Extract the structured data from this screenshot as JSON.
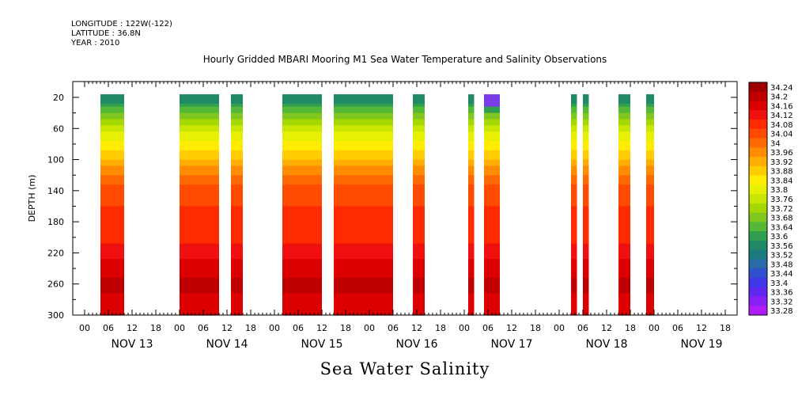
{
  "header": {
    "longitude": "LONGITUDE : 122W(-122)",
    "latitude": "LATITUDE : 36.8N",
    "year": "YEAR : 2010"
  },
  "chart_data": {
    "type": "heatmap",
    "title": "Hourly Gridded MBARI Mooring M1 Sea Water Temperature and Salinity Observations",
    "xlabel": "Sea Water Salinity",
    "ylabel": "DEPTH (m)",
    "y_range": [
      300,
      0
    ],
    "y_ticks": [
      20,
      60,
      100,
      140,
      180,
      220,
      260,
      300
    ],
    "x_hour_range": [
      -3,
      165
    ],
    "x_day_labels": [
      {
        "day": "NOV 13",
        "hour": 12
      },
      {
        "day": "NOV 14",
        "hour": 36
      },
      {
        "day": "NOV 15",
        "hour": 60
      },
      {
        "day": "NOV 16",
        "hour": 84
      },
      {
        "day": "NOV 17",
        "hour": 108
      },
      {
        "day": "NOV 18",
        "hour": 132
      },
      {
        "day": "NOV 19",
        "hour": 156
      }
    ],
    "x_hour_labels": [
      "00",
      "06",
      "12",
      "18"
    ],
    "colorbar": {
      "levels": [
        "34.24",
        "34.2",
        "34.16",
        "34.12",
        "34.08",
        "34.04",
        "34",
        "33.96",
        "33.92",
        "33.88",
        "33.84",
        "33.8",
        "33.76",
        "33.72",
        "33.68",
        "33.64",
        "33.6",
        "33.56",
        "33.52",
        "33.48",
        "33.44",
        "33.4",
        "33.36",
        "33.32",
        "33.28"
      ],
      "colors": [
        "#a00000",
        "#c00000",
        "#dc0000",
        "#f01010",
        "#ff2a00",
        "#ff4a00",
        "#ff6a00",
        "#ff8c00",
        "#ffad00",
        "#ffcd00",
        "#ffec00",
        "#e6f000",
        "#c8e600",
        "#a5d800",
        "#80c820",
        "#55b838",
        "#30a050",
        "#208a68",
        "#1a7a80",
        "#2a6aa8",
        "#3050d0",
        "#4038e8",
        "#6028f0",
        "#8820f4",
        "#b01cf8"
      ]
    },
    "data_blocks_hours": [
      {
        "start": 4,
        "end": 10,
        "profile": "standard"
      },
      {
        "start": 24,
        "end": 34,
        "profile": "standard"
      },
      {
        "start": 37,
        "end": 40,
        "profile": "standard"
      },
      {
        "start": 50,
        "end": 60,
        "profile": "standard"
      },
      {
        "start": 63,
        "end": 78,
        "profile": "standard"
      },
      {
        "start": 83,
        "end": 86,
        "profile": "standard"
      },
      {
        "start": 97,
        "end": 98.5,
        "profile": "standard"
      },
      {
        "start": 101,
        "end": 105,
        "profile": "low_surface"
      },
      {
        "start": 123,
        "end": 124.5,
        "profile": "standard"
      },
      {
        "start": 126,
        "end": 127.5,
        "profile": "standard"
      },
      {
        "start": 135,
        "end": 138,
        "profile": "standard"
      },
      {
        "start": 142,
        "end": 144,
        "profile": "standard"
      }
    ],
    "depth_profile_salinity": [
      {
        "depth": 20,
        "value": 33.54
      },
      {
        "depth": 40,
        "value": 33.66
      },
      {
        "depth": 60,
        "value": 33.76
      },
      {
        "depth": 80,
        "value": 33.84
      },
      {
        "depth": 100,
        "value": 33.9
      },
      {
        "depth": 120,
        "value": 33.98
      },
      {
        "depth": 140,
        "value": 34.04
      },
      {
        "depth": 160,
        "value": 34.06
      },
      {
        "depth": 180,
        "value": 34.07
      },
      {
        "depth": 200,
        "value": 34.08
      },
      {
        "depth": 220,
        "value": 34.12
      },
      {
        "depth": 240,
        "value": 34.16
      },
      {
        "depth": 260,
        "value": 34.19
      },
      {
        "depth": 280,
        "value": 34.17
      },
      {
        "depth": 300,
        "value": 34.16
      }
    ]
  }
}
